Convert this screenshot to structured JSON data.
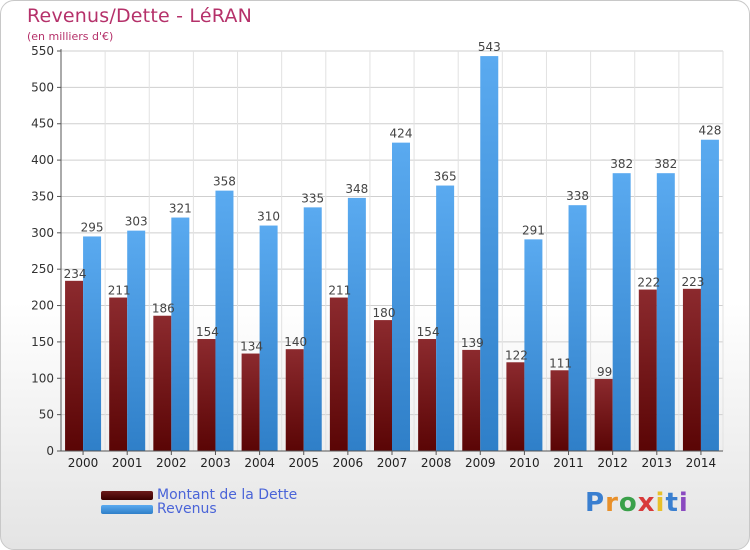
{
  "title": "Revenus/Dette - LéRAN",
  "subtitle": "(en milliers d'€)",
  "colors": {
    "dette": "#7a1418",
    "revenus": "#3b8fd6",
    "title": "#b5316a"
  },
  "legend": [
    {
      "label": "Montant de la Dette",
      "color": "#5a1010"
    },
    {
      "label": "Revenus",
      "color": "#3b8fd6"
    }
  ],
  "logo": {
    "text": "Proxiti"
  },
  "chart_data": {
    "type": "bar",
    "categories": [
      "2000",
      "2001",
      "2002",
      "2003",
      "2004",
      "2005",
      "2006",
      "2007",
      "2008",
      "2009",
      "2010",
      "2011",
      "2012",
      "2013",
      "2014"
    ],
    "series": [
      {
        "name": "Montant de la Dette",
        "values": [
          234,
          211,
          186,
          154,
          134,
          140,
          211,
          180,
          154,
          139,
          122,
          111,
          99,
          222,
          223
        ]
      },
      {
        "name": "Revenus",
        "values": [
          295,
          303,
          321,
          358,
          310,
          335,
          348,
          424,
          365,
          543,
          291,
          338,
          382,
          382,
          428
        ]
      }
    ],
    "ylim": [
      0,
      550
    ],
    "yticks": [
      0,
      50,
      100,
      150,
      200,
      250,
      300,
      350,
      400,
      450,
      500,
      550
    ],
    "grid": true,
    "legend_position": "bottom-left"
  }
}
